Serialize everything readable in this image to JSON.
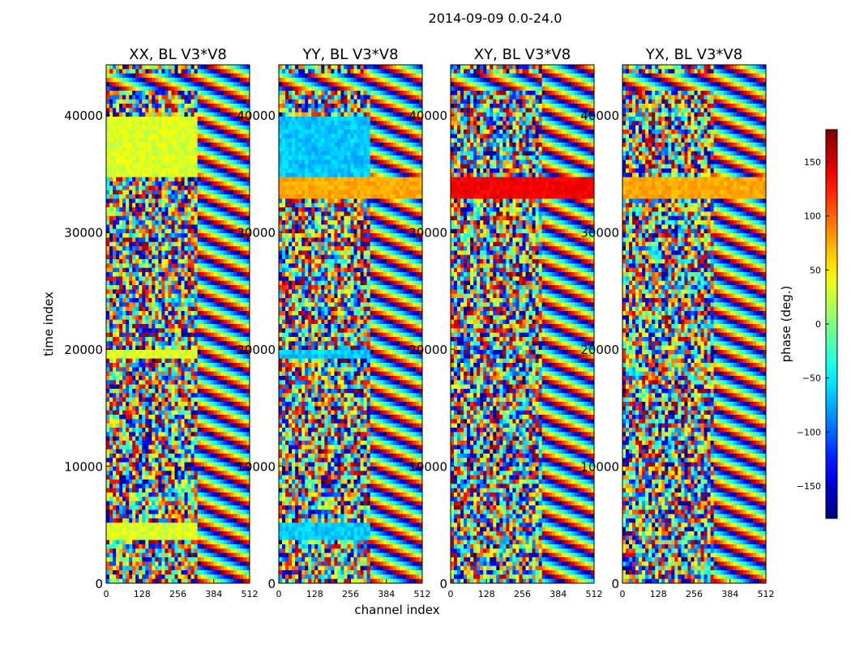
{
  "chart_data": {
    "type": "heatmap",
    "suptitle": "2014-09-09 0.0-24.0",
    "xlabel": "channel index",
    "ylabel": "time index",
    "xlim": [
      0,
      512
    ],
    "ylim": [
      0,
      44300
    ],
    "xticks": [
      0,
      128,
      256,
      384,
      512
    ],
    "yticks": [
      0,
      10000,
      20000,
      30000,
      40000
    ],
    "panels": [
      {
        "title": "XX, BL V3*V8",
        "pol": "XX"
      },
      {
        "title": "YY, BL V3*V8",
        "pol": "YY"
      },
      {
        "title": "XY, BL V3*V8",
        "pol": "XY"
      },
      {
        "title": "YX, BL V3*V8",
        "pol": "YX"
      }
    ],
    "colorbar": {
      "label": "phase (deg.)",
      "range": [
        -180,
        180
      ],
      "ticks": [
        -150,
        -100,
        -50,
        0,
        50,
        100,
        150
      ],
      "tick_labels": [
        "−150",
        "−100",
        "−50",
        "0",
        "50",
        "100",
        "150"
      ],
      "colormap": "jet"
    }
  }
}
